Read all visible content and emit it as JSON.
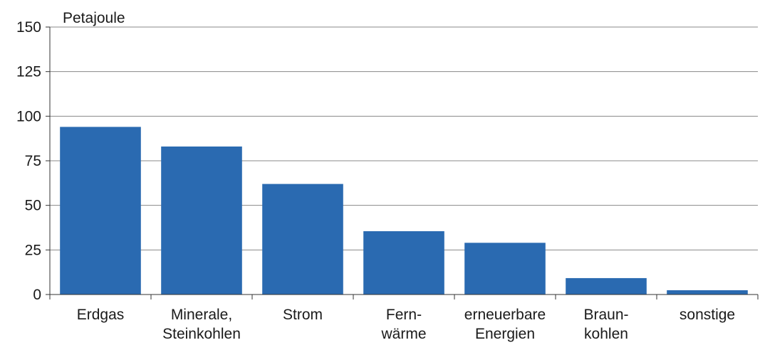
{
  "chart_data": {
    "type": "bar",
    "y_label": "Petajoule",
    "categories": [
      "Erdgas",
      "Minerale,\nSteinkohlen",
      "Strom",
      "Fern-\nwärme",
      "erneuerbare\nEnergien",
      "Braun-\nkohlen",
      "sonstige"
    ],
    "values": [
      94,
      83,
      62,
      35.5,
      29,
      9.2,
      2.4
    ],
    "color": "#2a6ab1",
    "ylim": [
      0,
      150
    ],
    "yticks": [
      0,
      25,
      50,
      75,
      100,
      125,
      150
    ],
    "grid": true
  }
}
